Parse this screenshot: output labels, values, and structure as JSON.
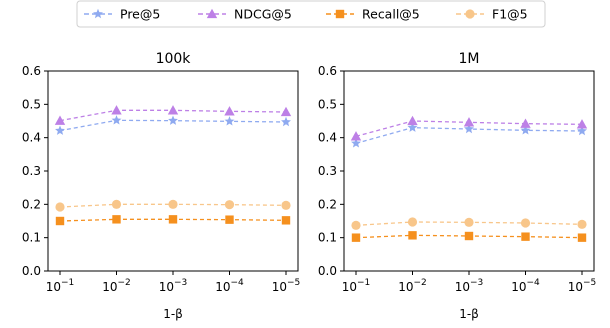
{
  "legend": [
    {
      "label": "Pre@5",
      "color": "#8faaf0",
      "marker": "star"
    },
    {
      "label": "NDCG@5",
      "color": "#bd80e6",
      "marker": "triangle"
    },
    {
      "label": "Recall@5",
      "color": "#f5901e",
      "marker": "square"
    },
    {
      "label": "F1@5",
      "color": "#f8c68a",
      "marker": "circle"
    }
  ],
  "chart_data": [
    {
      "type": "line",
      "title": "100k",
      "xlabel": "1-β",
      "categories": [
        "1",
        "2",
        "3",
        "4",
        "5"
      ],
      "ylim": [
        0.0,
        0.6
      ],
      "yticks": [
        "0.0",
        "0.1",
        "0.2",
        "0.3",
        "0.4",
        "0.5",
        "0.6"
      ],
      "series": [
        {
          "name": "Pre@5",
          "values": [
            0.421,
            0.452,
            0.451,
            0.449,
            0.447
          ]
        },
        {
          "name": "NDCG@5",
          "values": [
            0.451,
            0.482,
            0.482,
            0.479,
            0.477
          ]
        },
        {
          "name": "Recall@5",
          "values": [
            0.15,
            0.155,
            0.155,
            0.154,
            0.152
          ]
        },
        {
          "name": "F1@5",
          "values": [
            0.192,
            0.2,
            0.2,
            0.199,
            0.197
          ]
        }
      ]
    },
    {
      "type": "line",
      "title": "1M",
      "xlabel": "1-β",
      "categories": [
        "1",
        "2",
        "3",
        "4",
        "5"
      ],
      "ylim": [
        0.0,
        0.6
      ],
      "yticks": [
        "0.0",
        "0.1",
        "0.2",
        "0.3",
        "0.4",
        "0.5",
        "0.6"
      ],
      "series": [
        {
          "name": "Pre@5",
          "values": [
            0.383,
            0.43,
            0.426,
            0.422,
            0.42
          ]
        },
        {
          "name": "NDCG@5",
          "values": [
            0.404,
            0.45,
            0.446,
            0.442,
            0.44
          ]
        },
        {
          "name": "Recall@5",
          "values": [
            0.1,
            0.107,
            0.105,
            0.103,
            0.1
          ]
        },
        {
          "name": "F1@5",
          "values": [
            0.137,
            0.147,
            0.146,
            0.144,
            0.14
          ]
        }
      ]
    }
  ]
}
